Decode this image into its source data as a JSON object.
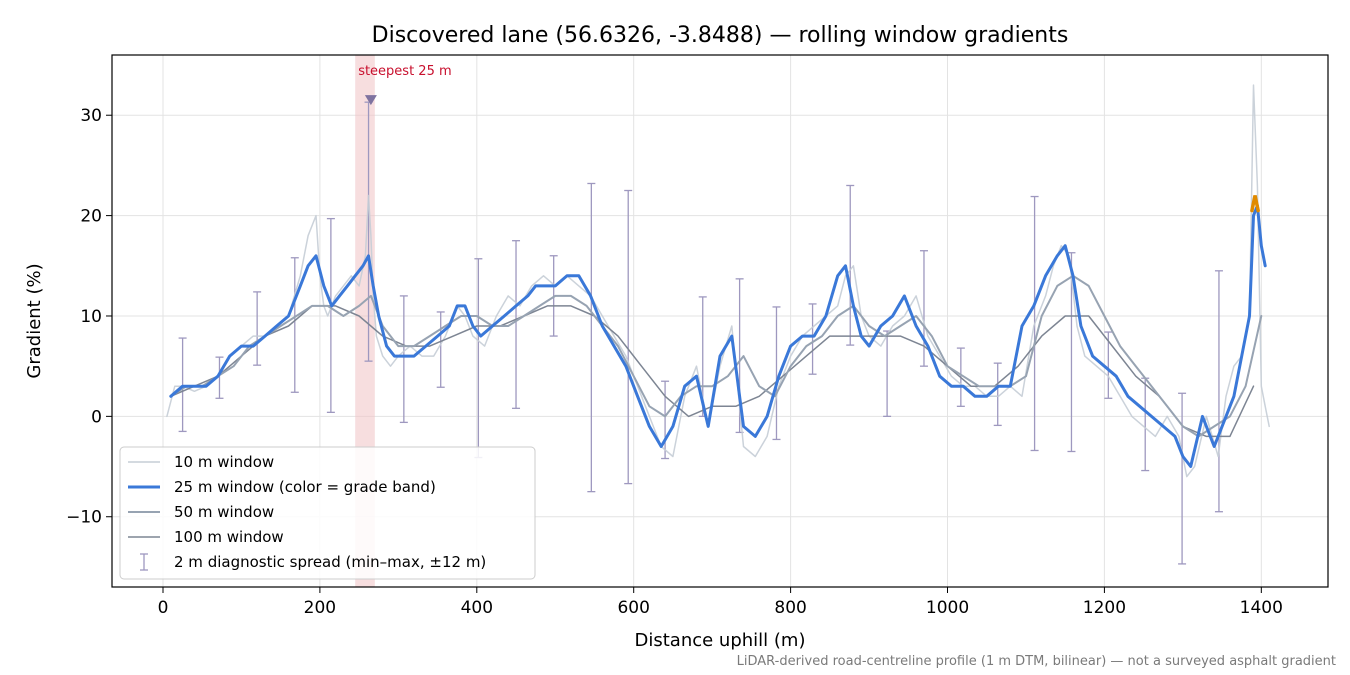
{
  "chart_data": {
    "type": "line",
    "title": "Discovered lane (56.6326, -3.8488) — rolling window gradients",
    "xlabel": "Distance uphill (m)",
    "ylabel": "Gradient (%)",
    "xlim": [
      -65,
      1485
    ],
    "ylim": [
      -17,
      36
    ],
    "x_ticks": [
      0,
      200,
      400,
      600,
      800,
      1000,
      1200,
      1400
    ],
    "y_ticks": [
      -10,
      0,
      10,
      20,
      30
    ],
    "grid": true,
    "legend_position": "lower-left",
    "footnote": "LiDAR-derived road-centreline profile (1 m DTM, bilinear) — not a surveyed asphalt gradient",
    "annotation": {
      "label": "steepest 25 m",
      "x": 265,
      "y": 31.5,
      "band": [
        245,
        270
      ]
    },
    "colors": {
      "w10": "#c5cdd6",
      "w25": "#3a78d8",
      "w25_steep": "#e08a00",
      "w50": "#97a3b2",
      "w100": "#7d8593",
      "errbar": "#9e98bf",
      "band": "#f0c2c5",
      "marker": "#7f73a0"
    },
    "series": [
      {
        "name": "10 m window",
        "x": [
          5,
          15,
          25,
          40,
          55,
          70,
          85,
          100,
          115,
          130,
          145,
          160,
          175,
          185,
          195,
          200,
          205,
          210,
          220,
          230,
          240,
          250,
          258,
          262,
          265,
          268,
          272,
          280,
          290,
          300,
          315,
          330,
          345,
          360,
          375,
          385,
          395,
          410,
          425,
          440,
          455,
          470,
          485,
          500,
          515,
          530,
          545,
          560,
          575,
          590,
          605,
          620,
          635,
          650,
          665,
          680,
          695,
          710,
          725,
          740,
          755,
          770,
          785,
          800,
          815,
          830,
          845,
          860,
          870,
          880,
          890,
          900,
          915,
          930,
          945,
          960,
          975,
          990,
          1005,
          1020,
          1035,
          1050,
          1065,
          1080,
          1095,
          1110,
          1125,
          1135,
          1145,
          1155,
          1165,
          1175,
          1190,
          1205,
          1220,
          1235,
          1250,
          1265,
          1280,
          1295,
          1305,
          1315,
          1330,
          1345,
          1355,
          1365,
          1375,
          1385,
          1390,
          1395,
          1400,
          1405,
          1410
        ],
        "y": [
          0,
          3,
          3,
          2.5,
          3,
          4,
          6,
          7,
          8,
          8,
          9,
          10,
          14,
          18,
          20,
          14,
          11,
          10,
          12,
          13,
          14,
          13,
          16,
          22,
          18,
          12,
          8,
          6,
          5,
          6,
          7,
          6,
          6,
          8,
          11,
          10,
          8,
          7,
          10,
          12,
          11,
          13,
          14,
          13,
          14,
          13,
          12,
          10,
          8,
          6,
          3,
          0,
          -3,
          -4,
          2,
          5,
          -1,
          5,
          9,
          -3,
          -4,
          -2,
          3,
          6,
          8,
          9,
          10,
          11,
          14,
          15,
          10,
          8,
          7,
          9,
          10,
          12,
          8,
          6,
          4,
          3,
          3,
          2,
          2,
          3,
          2,
          9,
          12,
          15,
          17,
          16,
          9,
          6,
          5,
          4,
          2,
          0,
          -1,
          -2,
          0,
          -2,
          -6,
          -5,
          0,
          -4,
          2,
          5,
          6,
          10,
          33,
          23,
          3,
          1,
          -1
        ],
        "w": 1.5,
        "op": 0.9
      },
      {
        "name": "25 m window (color = grade band)",
        "x": [
          10,
          25,
          40,
          55,
          70,
          85,
          100,
          115,
          130,
          145,
          160,
          175,
          185,
          195,
          205,
          215,
          225,
          235,
          245,
          255,
          262,
          268,
          275,
          285,
          295,
          305,
          320,
          335,
          350,
          365,
          375,
          385,
          395,
          405,
          420,
          435,
          450,
          465,
          475,
          485,
          500,
          515,
          530,
          545,
          560,
          575,
          590,
          605,
          620,
          635,
          650,
          665,
          680,
          695,
          710,
          725,
          740,
          755,
          770,
          785,
          800,
          815,
          830,
          845,
          860,
          870,
          880,
          890,
          900,
          915,
          930,
          945,
          960,
          975,
          990,
          1005,
          1020,
          1035,
          1050,
          1065,
          1080,
          1095,
          1110,
          1125,
          1140,
          1150,
          1160,
          1170,
          1185,
          1200,
          1215,
          1230,
          1245,
          1260,
          1275,
          1290,
          1300,
          1310,
          1325,
          1340,
          1355,
          1365,
          1375,
          1385,
          1390,
          1395,
          1400,
          1405
        ],
        "y": [
          2,
          3,
          3,
          3,
          4,
          6,
          7,
          7,
          8,
          9,
          10,
          13,
          15,
          16,
          13,
          11,
          12,
          13,
          14,
          15,
          16,
          13,
          10,
          7,
          6,
          6,
          6,
          7,
          8,
          9,
          11,
          11,
          9,
          8,
          9,
          10,
          11,
          12,
          13,
          13,
          13,
          14,
          14,
          12,
          9,
          7,
          5,
          2,
          -1,
          -3,
          -1,
          3,
          4,
          -1,
          6,
          8,
          -1,
          -2,
          0,
          4,
          7,
          8,
          8,
          10,
          14,
          15,
          11,
          8,
          7,
          9,
          10,
          12,
          9,
          7,
          4,
          3,
          3,
          2,
          2,
          3,
          3,
          9,
          11,
          14,
          16,
          17,
          14,
          9,
          6,
          5,
          4,
          2,
          1,
          0,
          -1,
          -2,
          -4,
          -5,
          0,
          -3,
          0,
          2,
          6,
          10,
          20,
          21,
          17,
          15
        ],
        "w": 3,
        "op": 1
      },
      {
        "name": "50 m window",
        "x": [
          10,
          30,
          50,
          70,
          90,
          110,
          130,
          150,
          170,
          190,
          210,
          230,
          250,
          265,
          280,
          300,
          320,
          340,
          360,
          380,
          400,
          420,
          440,
          460,
          480,
          500,
          520,
          540,
          560,
          580,
          600,
          620,
          640,
          660,
          680,
          700,
          720,
          740,
          760,
          780,
          800,
          820,
          840,
          860,
          880,
          900,
          920,
          940,
          960,
          980,
          1000,
          1020,
          1040,
          1060,
          1080,
          1100,
          1120,
          1140,
          1160,
          1180,
          1200,
          1220,
          1240,
          1260,
          1280,
          1300,
          1320,
          1340,
          1360,
          1380,
          1400
        ],
        "y": [
          2,
          3,
          3,
          4,
          5,
          7,
          8,
          9,
          10,
          11,
          11,
          10,
          11,
          12,
          9,
          7,
          7,
          8,
          9,
          10,
          10,
          9,
          9,
          10,
          11,
          12,
          12,
          11,
          9,
          7,
          4,
          1,
          0,
          2,
          3,
          3,
          4,
          6,
          3,
          2,
          5,
          7,
          8,
          10,
          11,
          9,
          8,
          9,
          10,
          8,
          5,
          4,
          3,
          3,
          3,
          4,
          10,
          13,
          14,
          13,
          10,
          7,
          5,
          3,
          1,
          -1,
          -2,
          -1,
          0,
          3,
          10
        ],
        "w": 2,
        "op": 1
      },
      {
        "name": "100 m window",
        "x": [
          10,
          40,
          70,
          100,
          130,
          160,
          190,
          220,
          250,
          280,
          310,
          340,
          370,
          400,
          430,
          460,
          490,
          520,
          550,
          580,
          610,
          640,
          670,
          700,
          730,
          760,
          790,
          820,
          850,
          880,
          910,
          940,
          970,
          1000,
          1030,
          1060,
          1090,
          1120,
          1150,
          1180,
          1210,
          1240,
          1270,
          1300,
          1330,
          1360,
          1390
        ],
        "y": [
          2,
          3,
          4,
          6,
          8,
          9,
          11,
          11,
          10,
          8,
          7,
          7,
          8,
          9,
          9,
          10,
          11,
          11,
          10,
          8,
          5,
          2,
          0,
          1,
          1,
          2,
          4,
          6,
          8,
          8,
          8,
          8,
          7,
          5,
          3,
          3,
          5,
          8,
          10,
          10,
          7,
          4,
          2,
          -1,
          -2,
          -2,
          3
        ],
        "w": 1.5,
        "op": 1
      }
    ],
    "steep_segment": {
      "x": [
        1388,
        1392,
        1396
      ],
      "y": [
        20.5,
        22,
        20.5
      ]
    },
    "error_bars": {
      "name": "2 m diagnostic spread (min–max, ±12 m)",
      "points": [
        {
          "x": 25,
          "low": -1.5,
          "high": 7.8
        },
        {
          "x": 72,
          "low": 1.8,
          "high": 5.9
        },
        {
          "x": 120,
          "low": 5.1,
          "high": 12.4
        },
        {
          "x": 168,
          "low": 2.4,
          "high": 15.8
        },
        {
          "x": 214,
          "low": 0.4,
          "high": 19.7
        },
        {
          "x": 262,
          "low": 5.5,
          "high": 31.3
        },
        {
          "x": 307,
          "low": -0.6,
          "high": 12.0
        },
        {
          "x": 354,
          "low": 2.9,
          "high": 10.4
        },
        {
          "x": 402,
          "low": -4.1,
          "high": 15.7
        },
        {
          "x": 450,
          "low": 0.8,
          "high": 17.5
        },
        {
          "x": 498,
          "low": 8.0,
          "high": 16.0
        },
        {
          "x": 546,
          "low": -7.5,
          "high": 23.2
        },
        {
          "x": 593,
          "low": -6.7,
          "high": 22.5
        },
        {
          "x": 640,
          "low": -4.2,
          "high": 3.5
        },
        {
          "x": 688,
          "low": 0.0,
          "high": 11.9
        },
        {
          "x": 735,
          "low": -1.6,
          "high": 13.7
        },
        {
          "x": 782,
          "low": -2.3,
          "high": 10.9
        },
        {
          "x": 828,
          "low": 4.2,
          "high": 11.2
        },
        {
          "x": 876,
          "low": 7.1,
          "high": 23.0
        },
        {
          "x": 923,
          "low": 0.0,
          "high": 8.5
        },
        {
          "x": 970,
          "low": 5.0,
          "high": 16.5
        },
        {
          "x": 1017,
          "low": 1.0,
          "high": 6.8
        },
        {
          "x": 1064,
          "low": -0.9,
          "high": 5.3
        },
        {
          "x": 1111,
          "low": -3.4,
          "high": 21.9
        },
        {
          "x": 1158,
          "low": -3.5,
          "high": 16.3
        },
        {
          "x": 1205,
          "low": 1.8,
          "high": 8.4
        },
        {
          "x": 1252,
          "low": -5.4,
          "high": 3.8
        },
        {
          "x": 1299,
          "low": -14.7,
          "high": 2.3
        },
        {
          "x": 1346,
          "low": -9.5,
          "high": 14.5
        }
      ]
    }
  }
}
